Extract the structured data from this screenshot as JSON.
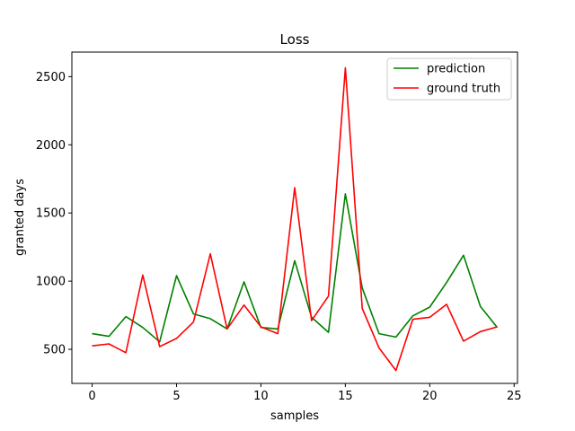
{
  "chart_data": {
    "type": "line",
    "title": "Loss",
    "xlabel": "samples",
    "ylabel": "granted days",
    "xlim": [
      -1.2,
      25.2
    ],
    "ylim": [
      250,
      2680
    ],
    "xticks": [
      0,
      5,
      10,
      15,
      20,
      25
    ],
    "yticks": [
      500,
      1000,
      1500,
      2000,
      2500
    ],
    "grid": false,
    "legend_position": "top-right",
    "x": [
      0,
      1,
      2,
      3,
      4,
      5,
      6,
      7,
      8,
      9,
      10,
      11,
      12,
      13,
      14,
      15,
      16,
      17,
      18,
      19,
      20,
      21,
      22,
      23,
      24
    ],
    "series": [
      {
        "name": "prediction",
        "color": "#008000",
        "values": [
          615,
          595,
          740,
          660,
          555,
          1040,
          760,
          725,
          650,
          995,
          660,
          650,
          1150,
          735,
          625,
          1640,
          950,
          615,
          590,
          745,
          810,
          990,
          1190,
          815,
          660
        ]
      },
      {
        "name": "ground truth",
        "color": "#ff0000",
        "values": [
          525,
          540,
          475,
          1045,
          520,
          580,
          700,
          1200,
          650,
          825,
          665,
          615,
          1685,
          710,
          890,
          2565,
          800,
          510,
          345,
          720,
          735,
          830,
          560,
          630,
          665
        ]
      }
    ]
  }
}
